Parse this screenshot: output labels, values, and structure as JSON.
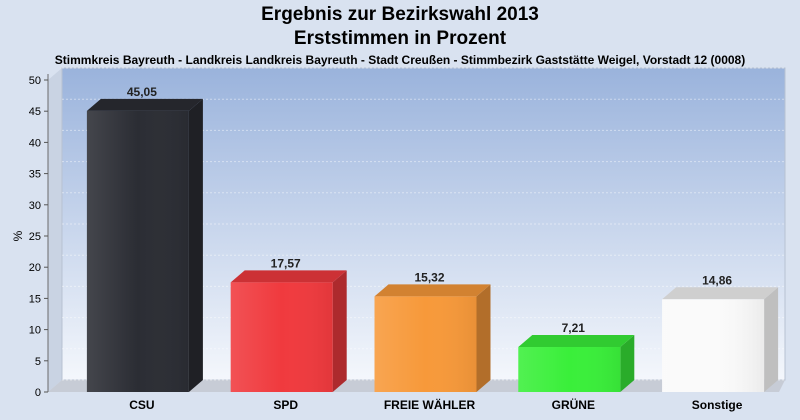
{
  "header": {
    "title_line1": "Ergebnis zur Bezirkswahl 2013",
    "title_line2": "Erststimmen in Prozent",
    "subtitle": "Stimmkreis Bayreuth - Landkreis Landkreis Bayreuth - Stadt Creußen - Stimmbezirk Gaststätte Weigel, Vorstadt 12 (0008)"
  },
  "chart_data": {
    "type": "bar",
    "title": "Ergebnis zur Bezirkswahl 2013",
    "subtitle": "Erststimmen in Prozent",
    "ylabel": "%",
    "xlabel": "",
    "ylim": [
      0,
      50
    ],
    "yticks": [
      0,
      5,
      10,
      15,
      20,
      25,
      30,
      35,
      40,
      45,
      50
    ],
    "grid": true,
    "categories": [
      "CSU",
      "SPD",
      "FREIE WÄHLER",
      "GRÜNE",
      "Sonstige"
    ],
    "values": [
      45.05,
      17.57,
      15.32,
      7.21,
      14.86
    ],
    "value_labels": [
      "45,05",
      "17,57",
      "15,32",
      "7,21",
      "14,86"
    ],
    "colors": [
      "#2b2d34",
      "#f03a3e",
      "#f7993a",
      "#3aef3a",
      "#fafafa"
    ]
  }
}
